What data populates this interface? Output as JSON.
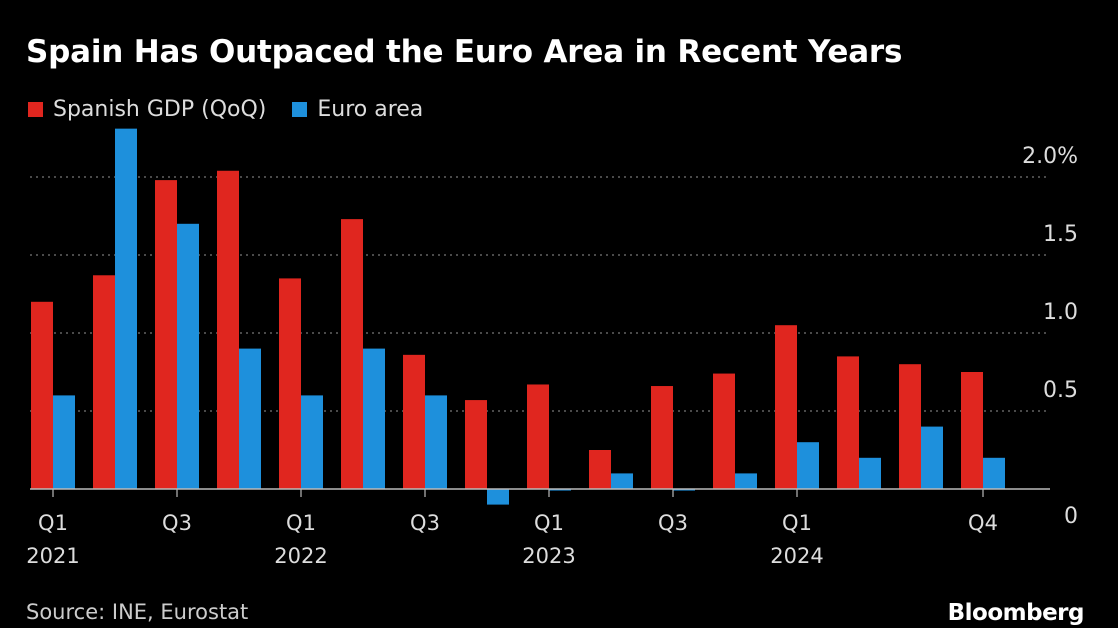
{
  "colors": {
    "spain": "#e0261f",
    "euro": "#1e90dc",
    "background": "#000000",
    "grid": "#777777"
  },
  "chart_data": {
    "type": "bar",
    "title": "Spain Has Outpaced the Euro Area in Recent Years",
    "categories": [
      "Q1 2021",
      "Q2 2021",
      "Q3 2021",
      "Q4 2021",
      "Q1 2022",
      "Q2 2022",
      "Q3 2022",
      "Q4 2022",
      "Q1 2023",
      "Q2 2023",
      "Q3 2023",
      "Q4 2023",
      "Q1 2024",
      "Q2 2024",
      "Q3 2024",
      "Q4 2024"
    ],
    "series": [
      {
        "name": "Spanish GDP (QoQ)",
        "values": [
          1.2,
          1.37,
          1.98,
          2.04,
          1.35,
          1.73,
          0.86,
          0.57,
          0.67,
          0.25,
          0.66,
          0.74,
          1.05,
          0.85,
          0.8,
          0.75
        ]
      },
      {
        "name": "Euro area",
        "values": [
          0.6,
          2.31,
          1.7,
          0.9,
          0.6,
          0.9,
          0.6,
          -0.1,
          -0.01,
          0.1,
          -0.01,
          0.1,
          0.3,
          0.2,
          0.4,
          0.2
        ]
      }
    ],
    "ylim": [
      -0.13,
      2.35
    ],
    "yticks": [
      {
        "value": 0,
        "label": "0"
      },
      {
        "value": 0.5,
        "label": "0.5"
      },
      {
        "value": 1.0,
        "label": "1.0"
      },
      {
        "value": 1.5,
        "label": "1.5"
      },
      {
        "value": 2.0,
        "label": "2.0%"
      }
    ],
    "xticks": [
      {
        "index": 0,
        "quarter": "Q1",
        "year": "2021"
      },
      {
        "index": 2,
        "quarter": "Q3",
        "year": ""
      },
      {
        "index": 4,
        "quarter": "Q1",
        "year": "2022"
      },
      {
        "index": 6,
        "quarter": "Q3",
        "year": ""
      },
      {
        "index": 8,
        "quarter": "Q1",
        "year": "2023"
      },
      {
        "index": 10,
        "quarter": "Q3",
        "year": ""
      },
      {
        "index": 12,
        "quarter": "Q1",
        "year": "2024"
      },
      {
        "index": 15,
        "quarter": "Q4",
        "year": ""
      }
    ],
    "grid": true,
    "legend": "top-left"
  },
  "footer": {
    "source": "Source: INE, Eurostat",
    "brand": "Bloomberg"
  }
}
